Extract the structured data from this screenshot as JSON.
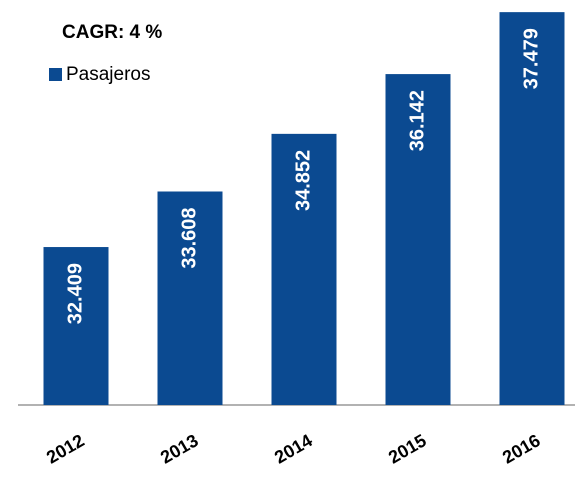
{
  "chart_data": {
    "type": "bar",
    "title": "CAGR: 4 %",
    "categories": [
      "2012",
      "2013",
      "2014",
      "2015",
      "2016"
    ],
    "series": [
      {
        "name": "Pasajeros",
        "color": "#0b4a91",
        "values": [
          32.409,
          33.608,
          34.852,
          36.142,
          37.479
        ]
      }
    ],
    "ylim": [
      29,
      38
    ]
  }
}
